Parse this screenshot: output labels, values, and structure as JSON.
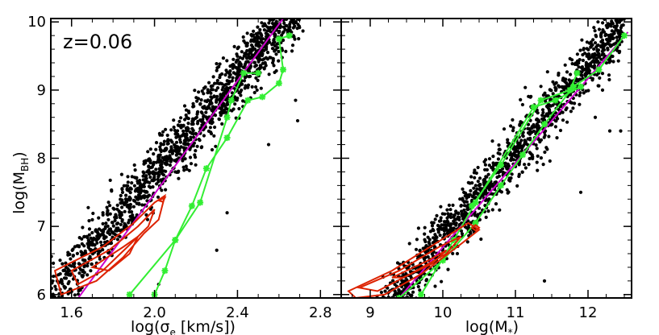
{
  "figure": {
    "redshift_label": "z=0.06",
    "ylabel_main": "log(M",
    "ylabel_sub": "BH",
    "ylabel_close": ")"
  },
  "chart_data": [
    {
      "type": "scatter",
      "xlabel_main": "log(σ",
      "xlabel_sub": "e",
      "xlabel_close": " [km/s])",
      "ylabel": "log(M_BH)",
      "xlim": [
        1.5,
        2.9
      ],
      "ylim": [
        5.95,
        10.05
      ],
      "xticks": [
        1.6,
        2.0,
        2.4,
        2.8
      ],
      "xtick_labels": [
        "1.6",
        "2.0",
        "2.4",
        "2.8"
      ],
      "yticks": [
        6,
        7,
        8,
        9,
        10
      ],
      "ytick_labels": [
        "6",
        "7",
        "8",
        "9",
        "10"
      ],
      "scatter_trend": {
        "slope": 3.6,
        "intercept": 0.55,
        "scatter": 0.22,
        "x_range": [
          1.5,
          2.72
        ]
      },
      "outliers": [
        [
          2.68,
          8.85
        ],
        [
          2.69,
          8.55
        ],
        [
          2.35,
          7.2
        ],
        [
          2.1,
          7.8
        ],
        [
          2.55,
          8.2
        ],
        [
          2.02,
          6.15
        ],
        [
          2.3,
          6.65
        ]
      ],
      "series": [
        {
          "type": "line",
          "color": "#cc00cc",
          "x": [
            1.5,
            2.62
          ],
          "y": [
            5.4,
            10.05
          ]
        },
        {
          "type": "line",
          "color": "#33ee33",
          "markers": true,
          "x": [
            2.0,
            2.05,
            2.1,
            2.18,
            2.25,
            2.35,
            2.45,
            2.52,
            2.6,
            2.62,
            2.6,
            2.65
          ],
          "y": [
            6.0,
            6.35,
            6.8,
            7.3,
            7.85,
            8.3,
            8.85,
            8.9,
            9.1,
            9.3,
            9.75,
            9.8
          ]
        },
        {
          "type": "line",
          "color": "#33ee33",
          "markers": true,
          "x": [
            1.88,
            2.1,
            2.22,
            2.35,
            2.37,
            2.43,
            2.5
          ],
          "y": [
            6.0,
            6.8,
            7.35,
            8.6,
            8.85,
            9.25,
            9.25
          ]
        },
        {
          "type": "contour",
          "color": "#dd2200",
          "shapes": [
            [
              [
                1.52,
                6.35
              ],
              [
                1.75,
                6.7
              ],
              [
                1.9,
                7.05
              ],
              [
                2.0,
                7.35
              ],
              [
                2.05,
                7.45
              ],
              [
                2.02,
                7.1
              ],
              [
                1.95,
                6.9
              ],
              [
                1.85,
                6.55
              ],
              [
                1.72,
                6.2
              ],
              [
                1.55,
                6.0
              ]
            ],
            [
              [
                1.6,
                6.35
              ],
              [
                1.78,
                6.65
              ],
              [
                1.92,
                7.0
              ],
              [
                2.0,
                7.25
              ],
              [
                1.97,
                7.0
              ],
              [
                1.87,
                6.7
              ],
              [
                1.75,
                6.35
              ],
              [
                1.63,
                6.15
              ]
            ],
            [
              [
                1.7,
                6.4
              ],
              [
                1.85,
                6.7
              ],
              [
                1.92,
                6.85
              ],
              [
                1.88,
                6.6
              ],
              [
                1.78,
                6.35
              ]
            ],
            [
              [
                2.02,
                7.38
              ],
              [
                2.05,
                7.42
              ],
              [
                2.04,
                7.36
              ]
            ]
          ]
        }
      ]
    },
    {
      "type": "scatter",
      "xlabel_main": "log(M",
      "xlabel_sub": "*",
      "xlabel_close": ")",
      "ylabel": "",
      "xlim": [
        8.6,
        12.6
      ],
      "ylim": [
        5.95,
        10.05
      ],
      "xticks": [
        9,
        10,
        11,
        12
      ],
      "xtick_labels": [
        "9",
        "10",
        "11",
        "12"
      ],
      "yticks": [
        6,
        7,
        8,
        9,
        10
      ],
      "ytick_labels": [],
      "scatter_trend": {
        "slope": 1.28,
        "intercept": -6.0,
        "scatter": 0.22,
        "x_range": [
          8.7,
          12.5
        ]
      },
      "outliers": [
        [
          12.3,
          8.4
        ],
        [
          12.45,
          8.4
        ],
        [
          11.9,
          7.5
        ],
        [
          12.1,
          8.6
        ],
        [
          10.2,
          6.6
        ],
        [
          11.4,
          6.2
        ],
        [
          12.2,
          9.0
        ]
      ],
      "series": [
        {
          "type": "line",
          "color": "#cc00cc",
          "x": [
            9.4,
            12.55
          ],
          "y": [
            5.95,
            9.85
          ]
        },
        {
          "type": "line",
          "color": "#33ee33",
          "markers": true,
          "x": [
            9.4,
            10.0,
            10.45,
            10.8,
            11.1,
            11.4,
            11.8,
            12.15,
            12.5
          ],
          "y": [
            5.95,
            6.5,
            7.05,
            7.6,
            8.05,
            8.5,
            9.05,
            9.3,
            9.8
          ]
        },
        {
          "type": "line",
          "color": "#33ee33",
          "markers": true,
          "x": [
            9.7,
            10.15,
            10.45,
            11.25,
            11.55,
            11.9
          ],
          "y": [
            6.0,
            6.8,
            7.35,
            8.75,
            8.85,
            9.05
          ]
        },
        {
          "type": "line",
          "color": "#33ee33",
          "markers": true,
          "x": [
            10.4,
            10.8,
            11.35,
            11.75,
            11.85
          ],
          "y": [
            7.3,
            7.9,
            8.85,
            9.0,
            9.25
          ]
        },
        {
          "type": "contour",
          "color": "#dd2200",
          "shapes": [
            [
              [
                8.7,
                6.05
              ],
              [
                9.3,
                6.35
              ],
              [
                9.9,
                6.75
              ],
              [
                10.35,
                7.05
              ],
              [
                10.5,
                6.95
              ],
              [
                10.2,
                6.7
              ],
              [
                9.7,
                6.3
              ],
              [
                9.2,
                6.0
              ],
              [
                8.8,
                5.95
              ]
            ],
            [
              [
                8.85,
                6.1
              ],
              [
                9.4,
                6.35
              ],
              [
                9.95,
                6.7
              ],
              [
                10.25,
                6.85
              ],
              [
                10.05,
                6.6
              ],
              [
                9.55,
                6.3
              ],
              [
                9.1,
                6.05
              ]
            ],
            [
              [
                9.3,
                6.25
              ],
              [
                9.8,
                6.5
              ],
              [
                10.05,
                6.65
              ],
              [
                9.85,
                6.45
              ],
              [
                9.45,
                6.25
              ]
            ],
            [
              [
                10.4,
                6.98
              ],
              [
                10.45,
                7.02
              ],
              [
                10.5,
                6.98
              ],
              [
                10.45,
                6.94
              ]
            ]
          ]
        }
      ]
    }
  ]
}
